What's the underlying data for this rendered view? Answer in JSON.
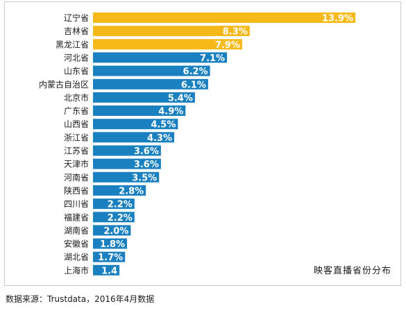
{
  "chart_data": {
    "type": "bar",
    "orientation": "horizontal",
    "caption": "映客直播省份分布",
    "categories": [
      "辽宁省",
      "吉林省",
      "黑龙江省",
      "河北省",
      "山东省",
      "内蒙古自治区",
      "北京市",
      "广东省",
      "山西省",
      "浙江省",
      "江苏省",
      "天津市",
      "河南省",
      "陕西省",
      "四川省",
      "福建省",
      "湖南省",
      "安徽省",
      "湖北省",
      "上海市"
    ],
    "values": [
      13.9,
      8.3,
      7.9,
      7.1,
      6.2,
      6.1,
      5.4,
      4.9,
      4.5,
      4.3,
      3.6,
      3.6,
      3.5,
      2.8,
      2.2,
      2.2,
      2.0,
      1.8,
      1.7,
      1.4
    ],
    "value_labels": [
      "13.9%",
      "8.3%",
      "7.9%",
      "7.1%",
      "6.2%",
      "6.1%",
      "5.4%",
      "4.9%",
      "4.5%",
      "4.3%",
      "3.6%",
      "3.6%",
      "3.5%",
      "2.8%",
      "2.2%",
      "2.2%",
      "2.0%",
      "1.8%",
      "1.7%",
      "1.4"
    ],
    "highlight_count": 3,
    "colors": {
      "highlight": "#F5BA1A",
      "default": "#1A80BF",
      "border": "#C9C9C9"
    },
    "grid": false,
    "legend": "none"
  },
  "footer": {
    "source": "数据来源：Trustdata，2016年4月数据"
  }
}
